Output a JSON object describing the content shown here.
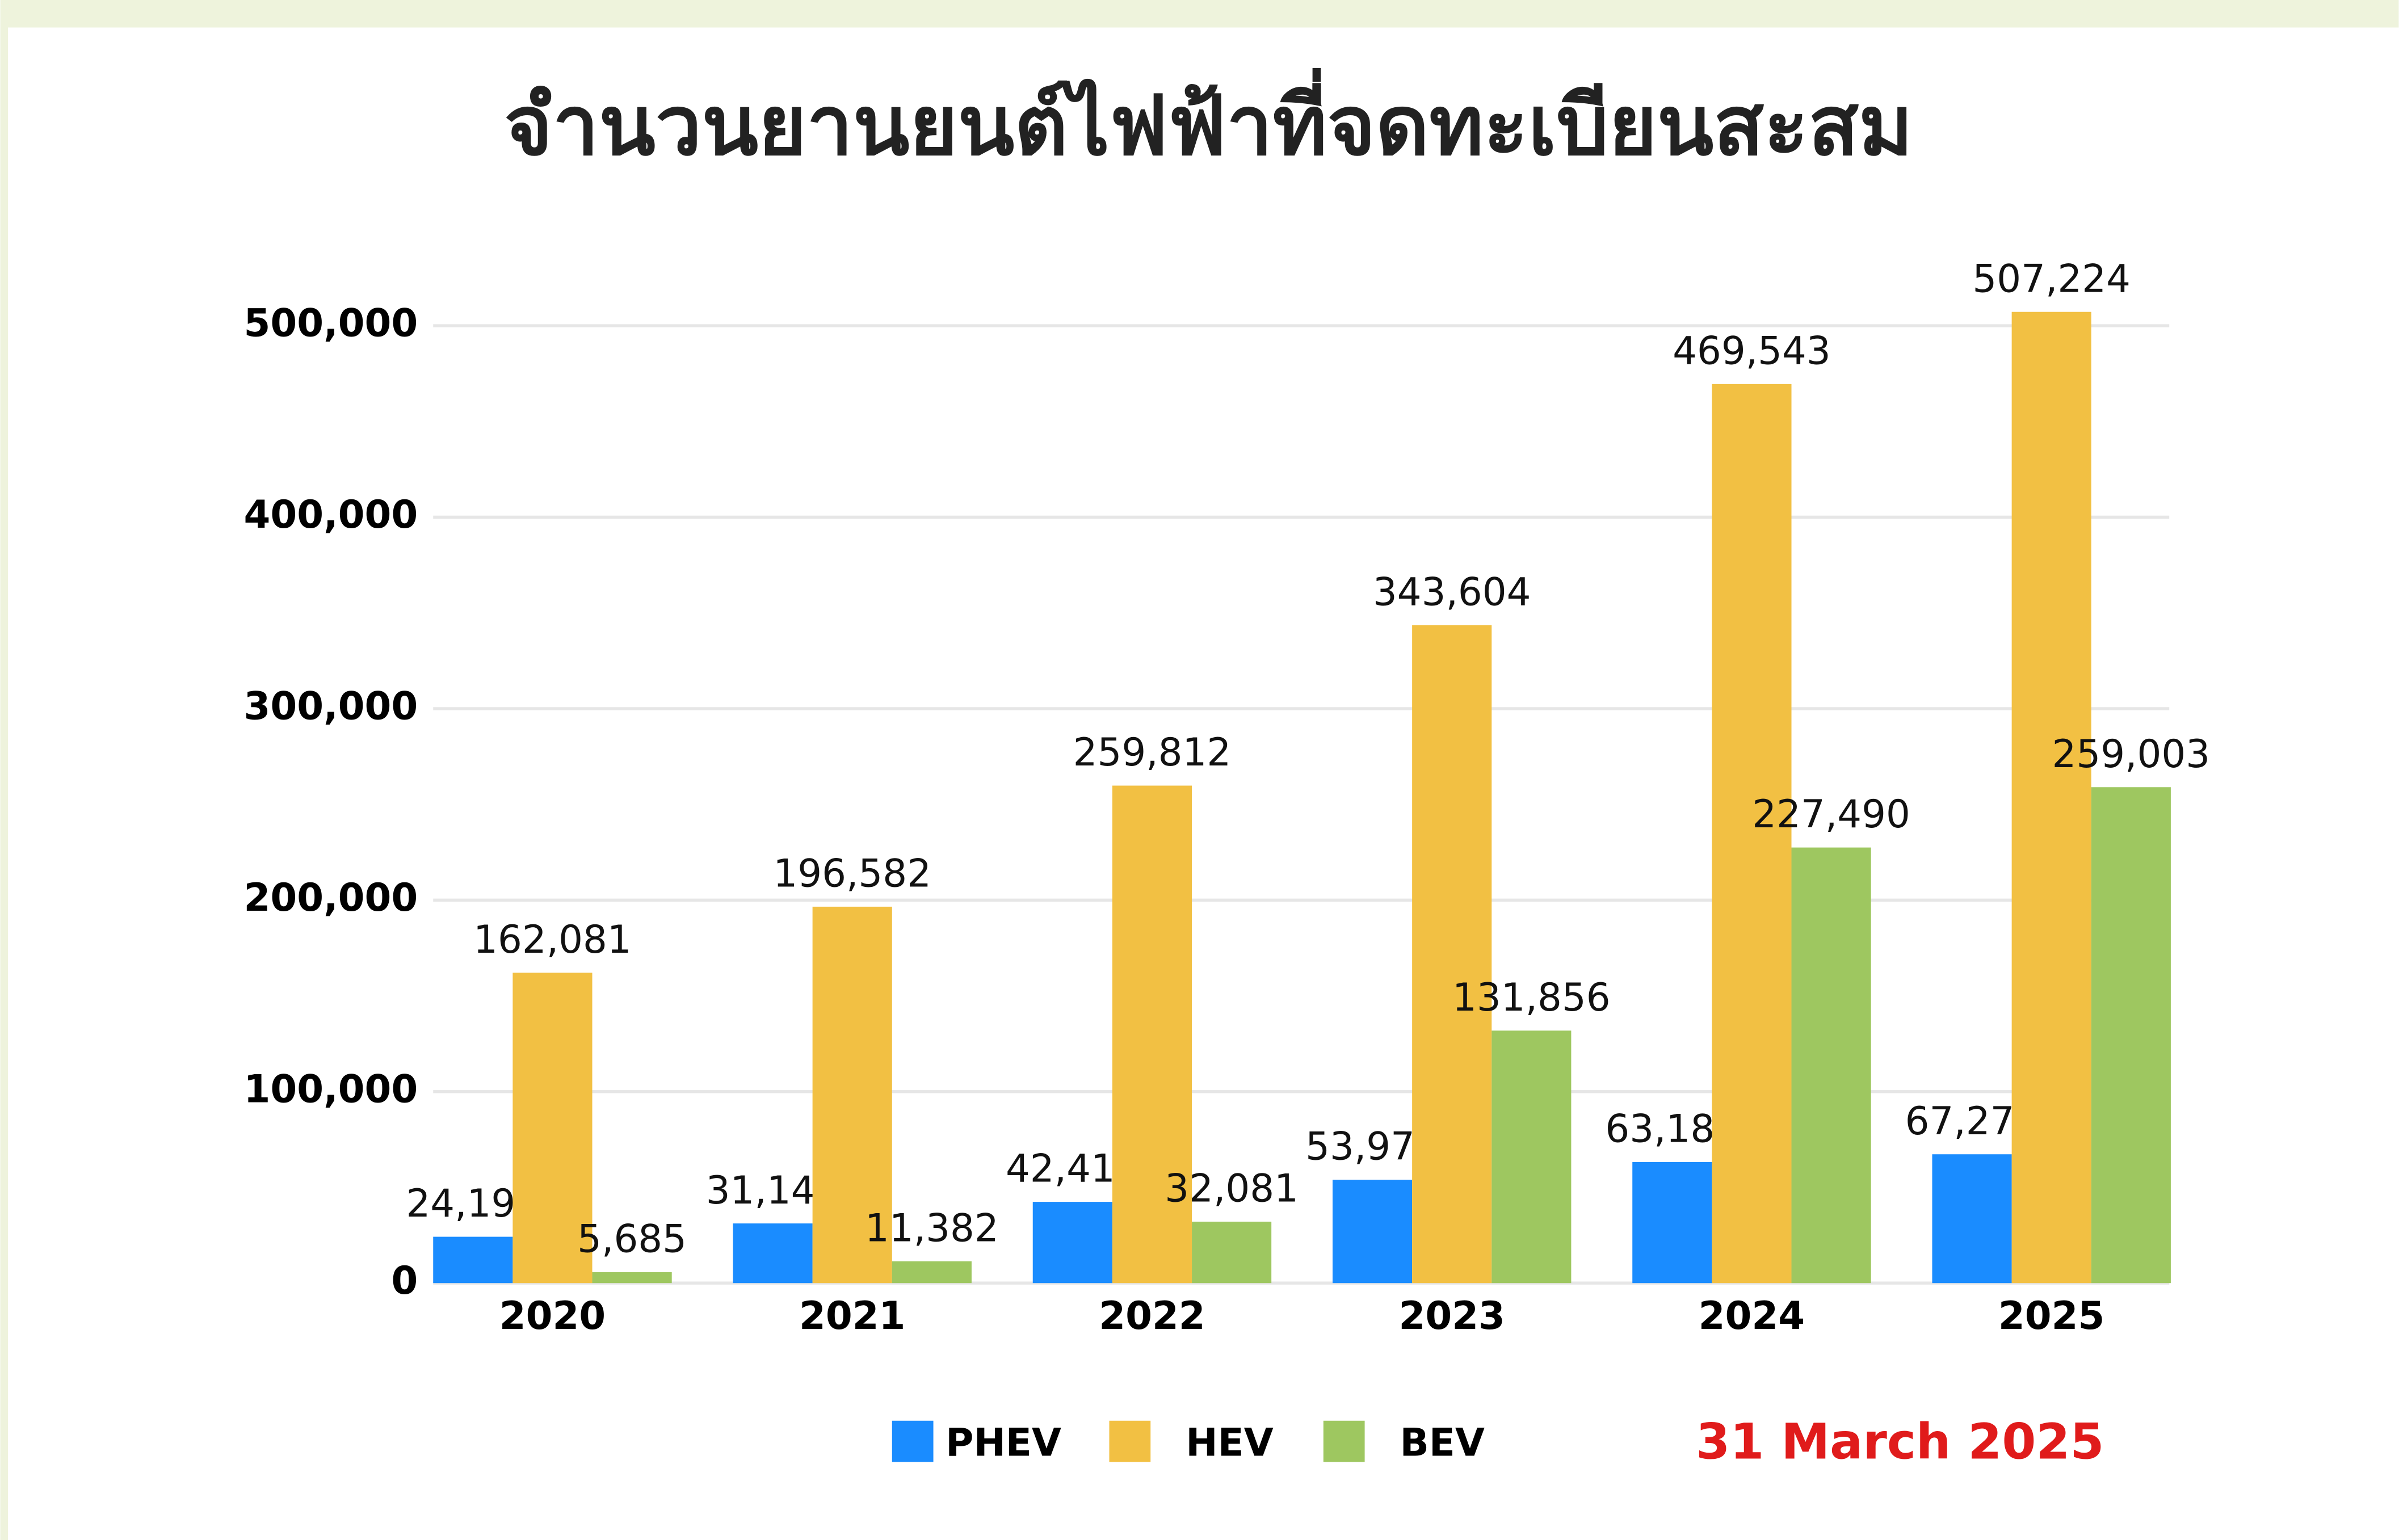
{
  "chart_data": {
    "type": "bar",
    "title": "จำนวนยานยนต์ไฟฟ้าที่จดทะเบียนสะสม",
    "annotation": "31 March 2025",
    "categories": [
      "2020",
      "2021",
      "2022",
      "2023",
      "2024",
      "2025"
    ],
    "series": [
      {
        "name": "PHEV",
        "color": "#1a8cff",
        "values": [
          24191,
          31145,
          42415,
          53979,
          63184,
          67270
        ],
        "value_labels": [
          "24,191",
          "31,145",
          "42,415",
          "53,979",
          "63,184",
          "67,270"
        ]
      },
      {
        "name": "HEV",
        "color": "#f2c043",
        "values": [
          162081,
          196582,
          259812,
          343604,
          469543,
          507224
        ],
        "value_labels": [
          "162,081",
          "196,582",
          "259,812",
          "343,604",
          "469,543",
          "507,224"
        ]
      },
      {
        "name": "BEV",
        "color": "#9ec760",
        "values": [
          5685,
          11382,
          32081,
          131856,
          227490,
          259003
        ],
        "value_labels": [
          "5,685",
          "11,382",
          "32,081",
          "131,856",
          "227,490",
          "259,003"
        ]
      }
    ],
    "ylim": [
      0,
      500000
    ],
    "yticks": [
      0,
      {
        "value": 100000,
        "label": "100,000"
      },
      {
        "value": 200000,
        "label": "200,000"
      },
      {
        "value": 300000,
        "label": "300,000"
      },
      {
        "value": 400000,
        "label": "400,000"
      },
      {
        "value": 500000,
        "label": "500,000"
      }
    ],
    "grid": true,
    "legend": "bottom",
    "annotation_color": "#e01b1b"
  }
}
